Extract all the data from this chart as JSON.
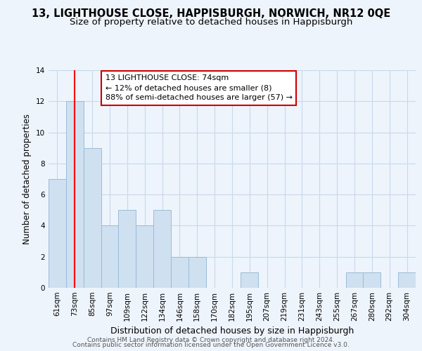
{
  "title": "13, LIGHTHOUSE CLOSE, HAPPISBURGH, NORWICH, NR12 0QE",
  "subtitle": "Size of property relative to detached houses in Happisburgh",
  "xlabel": "Distribution of detached houses by size in Happisburgh",
  "ylabel": "Number of detached properties",
  "bar_color": "#cfe0f0",
  "bar_edge_color": "#9bbcd8",
  "bin_labels": [
    "61sqm",
    "73sqm",
    "85sqm",
    "97sqm",
    "109sqm",
    "122sqm",
    "134sqm",
    "146sqm",
    "158sqm",
    "170sqm",
    "182sqm",
    "195sqm",
    "207sqm",
    "219sqm",
    "231sqm",
    "243sqm",
    "255sqm",
    "267sqm",
    "280sqm",
    "292sqm",
    "304sqm"
  ],
  "bar_heights": [
    7,
    12,
    9,
    4,
    5,
    4,
    5,
    2,
    2,
    0,
    0,
    1,
    0,
    0,
    0,
    0,
    0,
    1,
    1,
    0,
    1
  ],
  "ylim": [
    0,
    14
  ],
  "yticks": [
    0,
    2,
    4,
    6,
    8,
    10,
    12,
    14
  ],
  "property_line_x": 1,
  "property_line_label": "13 LIGHTHOUSE CLOSE: 74sqm",
  "annotation_line1": "← 12% of detached houses are smaller (8)",
  "annotation_line2": "88% of semi-detached houses are larger (57) →",
  "footer_line1": "Contains HM Land Registry data © Crown copyright and database right 2024.",
  "footer_line2": "Contains public sector information licensed under the Open Government Licence v3.0.",
  "grid_color": "#c8d8ea",
  "background_color": "#eef4fc",
  "title_fontsize": 10.5,
  "subtitle_fontsize": 9.5,
  "tick_fontsize": 7.5,
  "ylabel_fontsize": 8.5,
  "xlabel_fontsize": 9,
  "footer_fontsize": 6.5
}
